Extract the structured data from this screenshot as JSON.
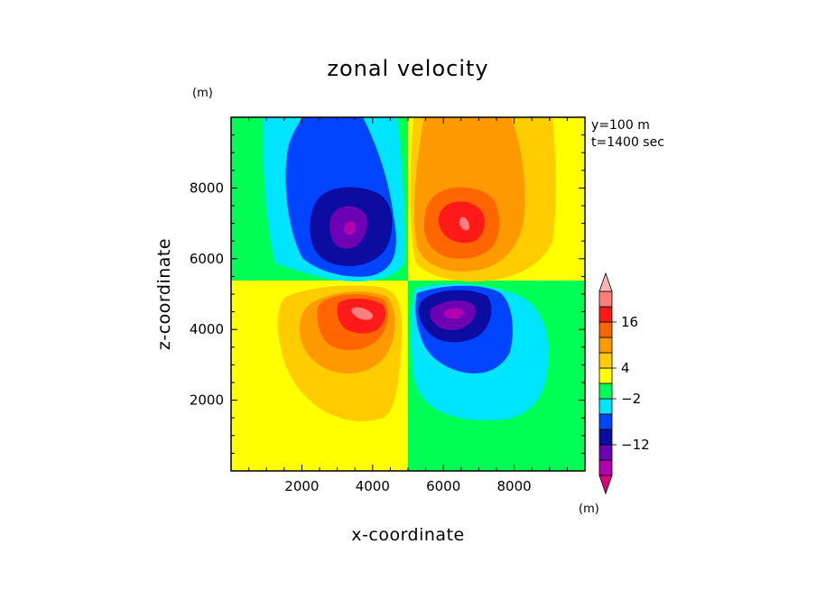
{
  "chart_data": {
    "type": "heatmap",
    "title": "zonal velocity",
    "xlabel": "x-coordinate",
    "ylabel": "z-coordinate",
    "x_unit": "(m)",
    "y_unit": "(m)",
    "xlim": [
      0,
      10000
    ],
    "ylim": [
      0,
      10000
    ],
    "x_ticks": [
      2000,
      4000,
      6000,
      8000
    ],
    "y_ticks": [
      2000,
      4000,
      6000,
      8000
    ],
    "x_tick_labels": [
      "2000",
      "4000",
      "6000",
      "8000"
    ],
    "y_tick_labels": [
      "2000",
      "4000",
      "6000",
      "8000"
    ],
    "annotations": [
      "y=100 m",
      "t=1400 sec"
    ],
    "colorbar": {
      "unit": "(m)",
      "levels": [
        -20,
        -16,
        -12,
        -8,
        -4,
        -2,
        2,
        4,
        8,
        12,
        16,
        20
      ],
      "labeled_levels": [
        16,
        4,
        -2,
        -12
      ],
      "labels": [
        "16",
        "4",
        "−2",
        "−12"
      ],
      "colors": [
        "#e0007c",
        "#b000b0",
        "#6d00b3",
        "#0c0ca0",
        "#0044ff",
        "#00e5ff",
        "#00ff55",
        "#ffff00",
        "#ffcc00",
        "#ff9900",
        "#ff6600",
        "#ff1a1a",
        "#ff7f7f",
        "#ffb3b3"
      ]
    },
    "extrema": [
      {
        "x": 3450,
        "z": 6900,
        "value": -17
      },
      {
        "x": 6650,
        "z": 6900,
        "value": 17
      },
      {
        "x": 3550,
        "z": 4450,
        "value": 17
      },
      {
        "x": 6350,
        "z": 4450,
        "value": -17
      }
    ],
    "grid": false
  }
}
